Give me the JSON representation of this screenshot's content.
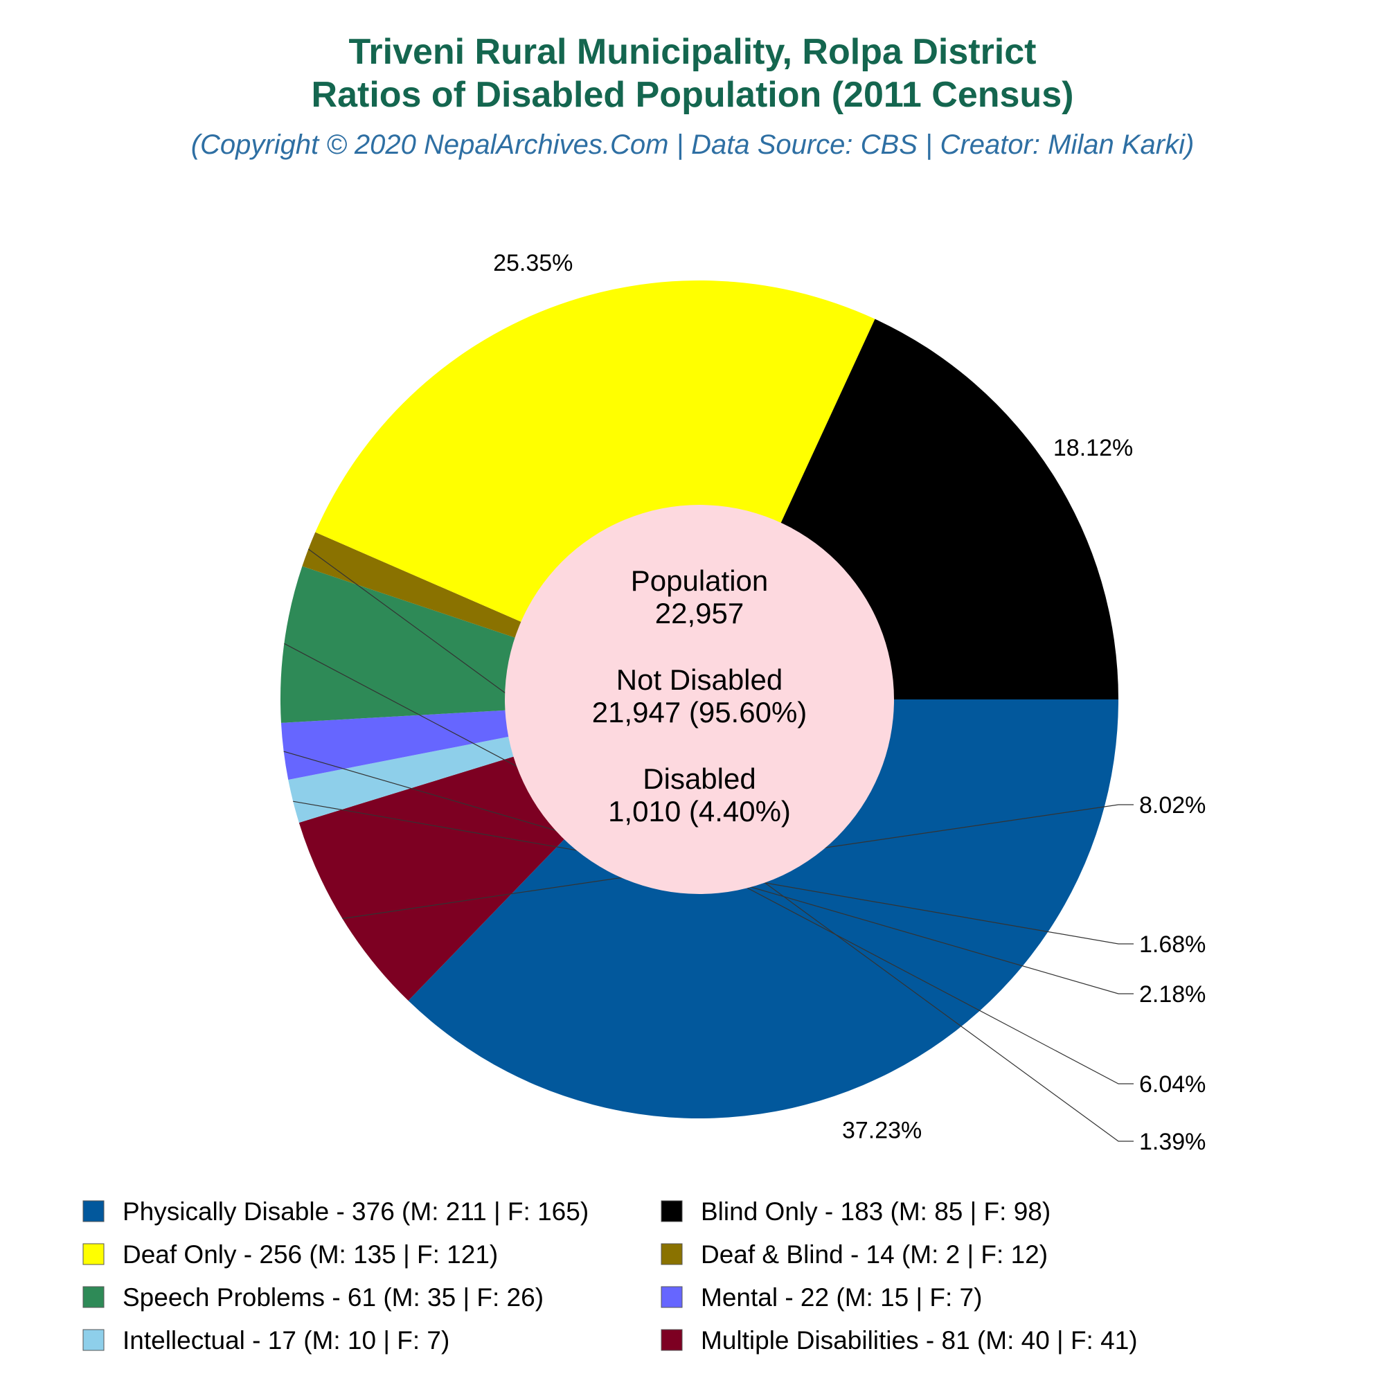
{
  "chart_data": {
    "type": "pie",
    "title": "Triveni Rural Municipality, Rolpa District",
    "subtitle": "Ratios of Disabled Population (2011 Census)",
    "credit": "(Copyright © 2020 NepalArchives.Com | Data Source: CBS | Creator: Milan Karki)",
    "center": {
      "population_label": "Population",
      "population_value": "22,957",
      "not_disabled_label": "Not Disabled",
      "not_disabled_value": "21,947 (95.60%)",
      "disabled_label": "Disabled",
      "disabled_value": "1,010 (4.40%)"
    },
    "slices": [
      {
        "label": "Physically Disable - 376 (M: 211 | F: 165)",
        "value": 376,
        "pct_label": "37.23%",
        "color": "#02589c"
      },
      {
        "label": "Multiple Disabilities - 81 (M: 40 | F: 41)",
        "value": 81,
        "pct_label": "8.02%",
        "color": "#7d0022"
      },
      {
        "label": "Intellectual - 17 (M: 10 | F: 7)",
        "value": 17,
        "pct_label": "1.68%",
        "color": "#8ecfea"
      },
      {
        "label": "Mental - 22 (M: 15 | F: 7)",
        "value": 22,
        "pct_label": "2.18%",
        "color": "#6666ff"
      },
      {
        "label": "Speech Problems - 61 (M: 35 | F: 26)",
        "value": 61,
        "pct_label": "6.04%",
        "color": "#2e8a57"
      },
      {
        "label": "Deaf & Blind - 14 (M: 2 | F: 12)",
        "value": 14,
        "pct_label": "1.39%",
        "color": "#8a7200"
      },
      {
        "label": "Deaf Only - 256 (M: 135 | F: 121)",
        "value": 256,
        "pct_label": "25.35%",
        "color": "#ffff00"
      },
      {
        "label": "Blind Only - 183 (M: 85 | F: 98)",
        "value": 183,
        "pct_label": "18.12%",
        "color": "#000000"
      }
    ],
    "legend_order": [
      "Physically Disable - 376 (M: 211 | F: 165)",
      "Blind Only - 183 (M: 85 | F: 98)",
      "Deaf Only - 256 (M: 135 | F: 121)",
      "Deaf & Blind - 14 (M: 2 | F: 12)",
      "Speech Problems - 61 (M: 35 | F: 26)",
      "Mental - 22 (M: 15 | F: 7)",
      "Intellectual - 17 (M: 10 | F: 7)",
      "Multiple Disabilities - 81 (M: 40 | F: 41)"
    ],
    "legend_placement": "bottom",
    "center_fill": "#fdd9df"
  }
}
